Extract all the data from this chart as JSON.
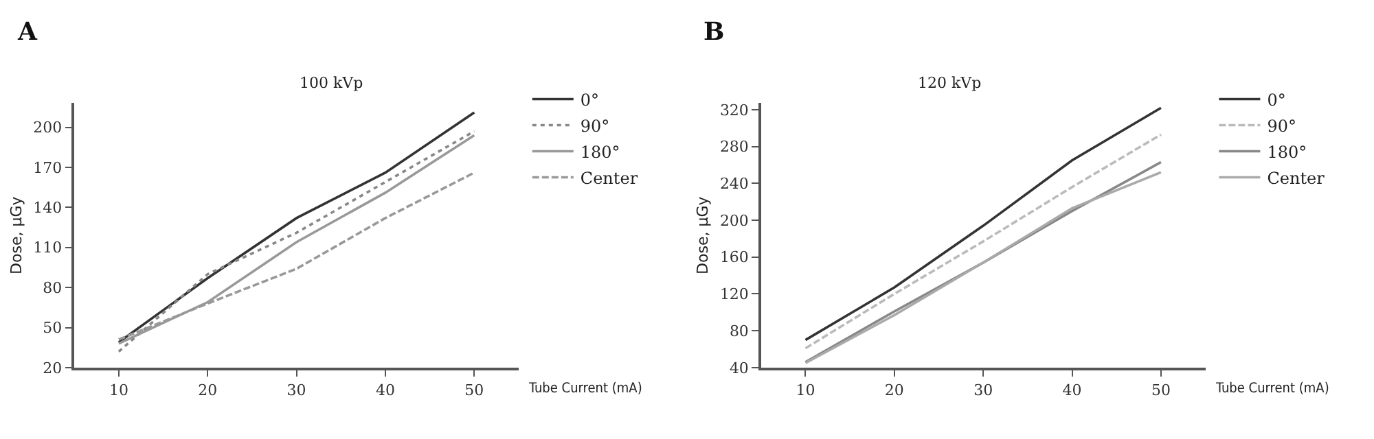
{
  "chart_data": [
    {
      "type": "line",
      "title": "100 kVp",
      "xlabel": "Tube Current (mA)",
      "ylabel": "Dose, µGy",
      "annotations": [
        "A"
      ],
      "x": [
        10,
        20,
        30,
        40,
        50
      ],
      "xlim": [
        5,
        55
      ],
      "xticks": [
        10,
        20,
        30,
        40,
        50
      ],
      "ylim": [
        20,
        218
      ],
      "yticks": [
        20,
        50,
        80,
        110,
        140,
        170,
        200
      ],
      "legend": "top right",
      "marker": "none",
      "series": [
        {
          "name": "0°",
          "color": "#333333",
          "line_style": "solid",
          "values": [
            39,
            87,
            132,
            166,
            211
          ]
        },
        {
          "name": "90°",
          "color": "#888888",
          "line_style": "dotted",
          "values": [
            32,
            90,
            121,
            159,
            197
          ]
        },
        {
          "name": "180°",
          "color": "#999999",
          "line_style": "solid",
          "values": [
            38,
            69,
            114,
            151,
            194
          ]
        },
        {
          "name": "Center",
          "color": "#999999",
          "line_style": "dashed",
          "values": [
            41,
            68,
            94,
            132,
            166
          ]
        }
      ]
    },
    {
      "type": "line",
      "title": "120 kVp",
      "xlabel": "Tube Current (mA)",
      "ylabel": "Dose, µGy",
      "annotations": [
        "B"
      ],
      "x": [
        10,
        20,
        30,
        40,
        50
      ],
      "xlim": [
        5,
        55
      ],
      "xticks": [
        10,
        20,
        30,
        40,
        50
      ],
      "ylim": [
        40,
        327
      ],
      "yticks": [
        40,
        80,
        120,
        160,
        200,
        240,
        280,
        320
      ],
      "legend": "top right",
      "marker": "none",
      "series": [
        {
          "name": "0°",
          "color": "#333333",
          "line_style": "solid",
          "values": [
            70,
            127,
            194,
            265,
            322
          ]
        },
        {
          "name": "90°",
          "color": "#bbbbbb",
          "line_style": "dashed",
          "values": [
            61,
            120,
            177,
            236,
            293
          ]
        },
        {
          "name": "180°",
          "color": "#888888",
          "line_style": "solid",
          "values": [
            46,
            101,
            154,
            210,
            263
          ]
        },
        {
          "name": "Center",
          "color": "#aaaaaa",
          "line_style": "solid",
          "values": [
            45,
            97,
            154,
            213,
            252
          ]
        }
      ]
    }
  ]
}
